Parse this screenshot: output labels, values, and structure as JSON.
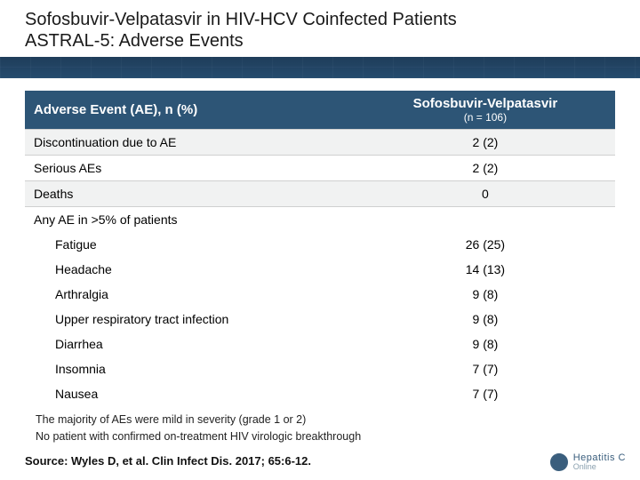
{
  "colors": {
    "header_bg": "#2d5576",
    "row_odd": "#f1f2f2",
    "row_even": "#ffffff",
    "rule_bg": "#254b6e",
    "text": "#1a1a1a"
  },
  "title": {
    "line1": "Sofosbuvir-Velpatasvir in HIV-HCV Coinfected Patients",
    "line2": "ASTRAL-5: Adverse Events"
  },
  "table": {
    "col_left": "Adverse Event (AE), n (%)",
    "col_right_title": "Sofosbuvir-Velpatasvir",
    "col_right_sub": "(n = 106)",
    "rows": [
      {
        "label": "Discontinuation due to AE",
        "value": "2 (2)",
        "indent": false,
        "section": false
      },
      {
        "label": "Serious AEs",
        "value": "2 (2)",
        "indent": false,
        "section": false
      },
      {
        "label": "Deaths",
        "value": "0",
        "indent": false,
        "section": false
      },
      {
        "label": "Any AE in >5% of patients",
        "value": "",
        "indent": false,
        "section": true
      },
      {
        "label": "Fatigue",
        "value": "26 (25)",
        "indent": true,
        "section": false
      },
      {
        "label": "Headache",
        "value": "14 (13)",
        "indent": true,
        "section": false
      },
      {
        "label": "Arthralgia",
        "value": "9 (8)",
        "indent": true,
        "section": false
      },
      {
        "label": "Upper respiratory tract infection",
        "value": "9 (8)",
        "indent": true,
        "section": false
      },
      {
        "label": "Diarrhea",
        "value": "9 (8)",
        "indent": true,
        "section": false
      },
      {
        "label": "Insomnia",
        "value": "7 (7)",
        "indent": true,
        "section": false
      },
      {
        "label": "Nausea",
        "value": "7 (7)",
        "indent": true,
        "section": false
      }
    ]
  },
  "notes": [
    "The majority of AEs were mild in severity (grade 1 or 2)",
    "No patient with confirmed on-treatment HIV virologic breakthrough"
  ],
  "source": "Source: Wyles D, et al. Clin Infect Dis. 2017; 65:6-12.",
  "logo": {
    "top": "Hepatitis C",
    "bottom": "Online"
  }
}
